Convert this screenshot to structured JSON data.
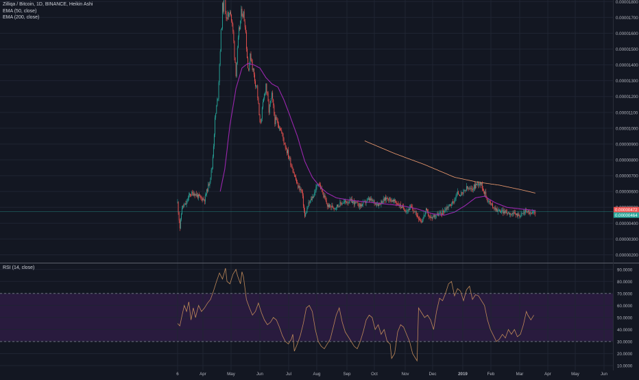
{
  "legend": {
    "symbol": "Zilliqa / Bitcoin, 1D, BINANCE, Heikin Ashi",
    "ema50": "EMA (50, close)",
    "ema200": "EMA (200, close)",
    "rsi": "RSI (14, close)"
  },
  "colors": {
    "background": "#131722",
    "up": "#26a69a",
    "down": "#ef5350",
    "ema50": "#9c27b0",
    "ema200": "#f7a072",
    "rsi_line": "#c08a5a",
    "rsi_band": "#3d1f56"
  },
  "chart_data": [
    {
      "type": "candlestick",
      "title": "Zilliqa / Bitcoin, 1D, BINANCE, Heikin Ashi",
      "y_ticks": [
        "0.00001800",
        "0.00001700",
        "0.00001600",
        "0.00001500",
        "0.00001400",
        "0.00001300",
        "0.00001200",
        "0.00001100",
        "0.00001000",
        "0.00000900",
        "0.00000800",
        "0.00000700",
        "0.00000600",
        "0.00000500",
        "0.00000400",
        "0.00000300",
        "0.00000200"
      ],
      "ylim": [
        1.5e-06,
        1.81e-05
      ],
      "last_price_labels": [
        "0.00000472",
        "0.00000464"
      ],
      "x_labels": [
        "6",
        "Apr",
        "May",
        "Jun",
        "Jul",
        "Aug",
        "Sep",
        "Oct",
        "Nov",
        "Dec",
        "2019",
        "Feb",
        "Mar",
        "Apr",
        "May",
        "Jun"
      ],
      "price_anchors": [
        [
          0,
          5.3e-06
        ],
        [
          3,
          3.7e-06
        ],
        [
          6,
          5e-06
        ],
        [
          11,
          5.2e-06
        ],
        [
          16,
          5.8e-06
        ],
        [
          22,
          5.9e-06
        ],
        [
          30,
          5.6e-06
        ],
        [
          36,
          5.5e-06
        ],
        [
          42,
          6.5e-06
        ],
        [
          46,
          7.5e-06
        ],
        [
          50,
          1.05e-05
        ],
        [
          54,
          1.21e-05
        ],
        [
          57,
          1.51e-05
        ],
        [
          60,
          1.75e-05
        ],
        [
          63,
          1.81e-05
        ],
        [
          66,
          1.67e-05
        ],
        [
          70,
          1.77e-05
        ],
        [
          74,
          1.6e-05
        ],
        [
          78,
          1.36e-05
        ],
        [
          82,
          1.6e-05
        ],
        [
          86,
          1.75e-05
        ],
        [
          90,
          1.68e-05
        ],
        [
          94,
          1.38e-05
        ],
        [
          98,
          1.46e-05
        ],
        [
          102,
          1.33e-05
        ],
        [
          106,
          1.26e-05
        ],
        [
          110,
          1.02e-05
        ],
        [
          114,
          1.14e-05
        ],
        [
          118,
          1.28e-05
        ],
        [
          122,
          1.11e-05
        ],
        [
          126,
          1.2e-05
        ],
        [
          130,
          1.05e-05
        ],
        [
          136,
          1.02e-05
        ],
        [
          142,
          9.2e-06
        ],
        [
          148,
          8.3e-06
        ],
        [
          154,
          7.4e-06
        ],
        [
          160,
          6.4e-06
        ],
        [
          166,
          6e-06
        ],
        [
          170,
          4.4e-06
        ],
        [
          175,
          5.2e-06
        ],
        [
          182,
          5.8e-06
        ],
        [
          188,
          6.6e-06
        ],
        [
          194,
          5.9e-06
        ],
        [
          200,
          5.1e-06
        ],
        [
          210,
          5e-06
        ],
        [
          220,
          5.3e-06
        ],
        [
          232,
          5.4e-06
        ],
        [
          244,
          5.1e-06
        ],
        [
          256,
          5.5e-06
        ],
        [
          268,
          5.2e-06
        ],
        [
          280,
          5.6e-06
        ],
        [
          292,
          5.3e-06
        ],
        [
          300,
          5e-06
        ],
        [
          306,
          4.8e-06
        ],
        [
          312,
          5e-06
        ],
        [
          320,
          4.5e-06
        ],
        [
          326,
          4.1e-06
        ],
        [
          332,
          4.8e-06
        ],
        [
          338,
          4.3e-06
        ],
        [
          344,
          4.5e-06
        ],
        [
          352,
          4.6e-06
        ],
        [
          360,
          5e-06
        ],
        [
          368,
          5.3e-06
        ],
        [
          374,
          5.9e-06
        ],
        [
          380,
          5.8e-06
        ],
        [
          386,
          6.2e-06
        ],
        [
          392,
          6.1e-06
        ],
        [
          398,
          6.4e-06
        ],
        [
          404,
          6.6e-06
        ],
        [
          408,
          6.2e-06
        ],
        [
          414,
          5.5e-06
        ],
        [
          420,
          5.1e-06
        ],
        [
          428,
          4.8e-06
        ],
        [
          438,
          4.7e-06
        ],
        [
          448,
          4.6e-06
        ],
        [
          458,
          4.5e-06
        ],
        [
          466,
          4.8e-06
        ],
        [
          472,
          4.6e-06
        ],
        [
          478,
          4.7e-06
        ]
      ],
      "ema50_anchors": [
        [
          57,
          6e-06
        ],
        [
          63,
          7.4e-06
        ],
        [
          70,
          1.02e-05
        ],
        [
          78,
          1.25e-05
        ],
        [
          86,
          1.38e-05
        ],
        [
          94,
          1.41e-05
        ],
        [
          102,
          1.4e-05
        ],
        [
          110,
          1.38e-05
        ],
        [
          118,
          1.32e-05
        ],
        [
          126,
          1.28e-05
        ],
        [
          134,
          1.26e-05
        ],
        [
          142,
          1.18e-05
        ],
        [
          150,
          1.08e-05
        ],
        [
          160,
          9.5e-06
        ],
        [
          170,
          7.9e-06
        ],
        [
          180,
          6.9e-06
        ],
        [
          190,
          6.3e-06
        ],
        [
          200,
          5.9e-06
        ],
        [
          212,
          5.6e-06
        ],
        [
          224,
          5.5e-06
        ],
        [
          240,
          5.4e-06
        ],
        [
          260,
          5.3e-06
        ],
        [
          280,
          5.2e-06
        ],
        [
          300,
          5.1e-06
        ],
        [
          320,
          4.9e-06
        ],
        [
          340,
          4.6e-06
        ],
        [
          356,
          4.5e-06
        ],
        [
          370,
          4.7e-06
        ],
        [
          384,
          5.1e-06
        ],
        [
          398,
          5.6e-06
        ],
        [
          410,
          5.7e-06
        ],
        [
          424,
          5.3e-06
        ],
        [
          440,
          5e-06
        ],
        [
          458,
          4.9e-06
        ],
        [
          478,
          4.8e-06
        ]
      ],
      "ema200_anchors": [
        [
          250,
          9.2e-06
        ],
        [
          290,
          8.4e-06
        ],
        [
          330,
          7.7e-06
        ],
        [
          370,
          6.9e-06
        ],
        [
          400,
          6.6e-06
        ],
        [
          430,
          6.4e-06
        ],
        [
          460,
          6.1e-06
        ],
        [
          478,
          5.9e-06
        ]
      ]
    },
    {
      "type": "line",
      "title": "RSI (14, close)",
      "y_ticks": [
        "90.0000",
        "80.0000",
        "70.0000",
        "60.0000",
        "50.0000",
        "40.0000",
        "30.0000",
        "20.0000",
        "10.0000"
      ],
      "ylim": [
        6,
        95
      ],
      "band": [
        30,
        70
      ],
      "values": [
        [
          0,
          45
        ],
        [
          3,
          43
        ],
        [
          6,
          52
        ],
        [
          9,
          60
        ],
        [
          12,
          55
        ],
        [
          15,
          63
        ],
        [
          18,
          48
        ],
        [
          21,
          58
        ],
        [
          24,
          50
        ],
        [
          28,
          60
        ],
        [
          32,
          55
        ],
        [
          36,
          58
        ],
        [
          40,
          62
        ],
        [
          44,
          65
        ],
        [
          48,
          72
        ],
        [
          52,
          80
        ],
        [
          56,
          87
        ],
        [
          60,
          82
        ],
        [
          64,
          91
        ],
        [
          66,
          80
        ],
        [
          70,
          78
        ],
        [
          74,
          86
        ],
        [
          78,
          90
        ],
        [
          80,
          85
        ],
        [
          84,
          78
        ],
        [
          86,
          88
        ],
        [
          88,
          84
        ],
        [
          92,
          65
        ],
        [
          96,
          58
        ],
        [
          100,
          52
        ],
        [
          104,
          55
        ],
        [
          108,
          62
        ],
        [
          112,
          54
        ],
        [
          116,
          48
        ],
        [
          120,
          44
        ],
        [
          124,
          46
        ],
        [
          128,
          50
        ],
        [
          132,
          48
        ],
        [
          136,
          42
        ],
        [
          140,
          35
        ],
        [
          144,
          30
        ],
        [
          148,
          28
        ],
        [
          152,
          32
        ],
        [
          154,
          36
        ],
        [
          156,
          22
        ],
        [
          160,
          28
        ],
        [
          164,
          35
        ],
        [
          168,
          45
        ],
        [
          172,
          58
        ],
        [
          176,
          60
        ],
        [
          180,
          55
        ],
        [
          184,
          40
        ],
        [
          188,
          30
        ],
        [
          192,
          26
        ],
        [
          196,
          24
        ],
        [
          200,
          28
        ],
        [
          204,
          32
        ],
        [
          208,
          42
        ],
        [
          212,
          52
        ],
        [
          216,
          58
        ],
        [
          220,
          46
        ],
        [
          224,
          38
        ],
        [
          228,
          34
        ],
        [
          232,
          30
        ],
        [
          236,
          26
        ],
        [
          240,
          24
        ],
        [
          244,
          30
        ],
        [
          248,
          38
        ],
        [
          252,
          48
        ],
        [
          256,
          52
        ],
        [
          260,
          50
        ],
        [
          264,
          40
        ],
        [
          268,
          44
        ],
        [
          272,
          36
        ],
        [
          276,
          40
        ],
        [
          280,
          30
        ],
        [
          284,
          28
        ],
        [
          286,
          16
        ],
        [
          290,
          20
        ],
        [
          294,
          38
        ],
        [
          298,
          44
        ],
        [
          302,
          42
        ],
        [
          306,
          36
        ],
        [
          310,
          30
        ],
        [
          314,
          20
        ],
        [
          318,
          16
        ],
        [
          320,
          14
        ],
        [
          322,
          58
        ],
        [
          326,
          54
        ],
        [
          330,
          50
        ],
        [
          334,
          52
        ],
        [
          338,
          48
        ],
        [
          342,
          40
        ],
        [
          346,
          55
        ],
        [
          350,
          66
        ],
        [
          354,
          64
        ],
        [
          358,
          70
        ],
        [
          362,
          78
        ],
        [
          366,
          80
        ],
        [
          370,
          68
        ],
        [
          374,
          74
        ],
        [
          378,
          72
        ],
        [
          382,
          64
        ],
        [
          386,
          73
        ],
        [
          390,
          76
        ],
        [
          394,
          65
        ],
        [
          398,
          69
        ],
        [
          402,
          68
        ],
        [
          406,
          64
        ],
        [
          410,
          60
        ],
        [
          414,
          48
        ],
        [
          418,
          40
        ],
        [
          422,
          35
        ],
        [
          426,
          30
        ],
        [
          430,
          32
        ],
        [
          434,
          36
        ],
        [
          438,
          33
        ],
        [
          442,
          40
        ],
        [
          446,
          36
        ],
        [
          450,
          40
        ],
        [
          454,
          34
        ],
        [
          458,
          36
        ],
        [
          462,
          44
        ],
        [
          466,
          55
        ],
        [
          468,
          52
        ],
        [
          472,
          48
        ],
        [
          476,
          52
        ]
      ]
    }
  ]
}
